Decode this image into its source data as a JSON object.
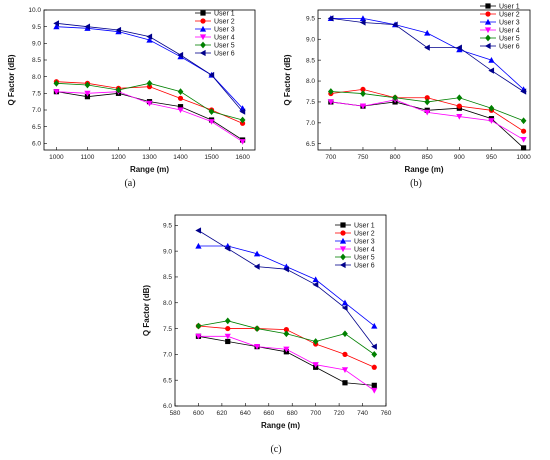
{
  "chart_data": [
    {
      "type": "line",
      "panel_label": "(a)",
      "xlabel": "Range (m)",
      "ylabel": "Q Factor (dB)",
      "x": [
        1000,
        1100,
        1200,
        1300,
        1400,
        1500,
        1600
      ],
      "xticks": [
        1000,
        1100,
        1200,
        1300,
        1400,
        1500,
        1600
      ],
      "yticks": [
        "6.0",
        "6.5",
        "7.0",
        "7.5",
        "8.0",
        "8.5",
        "9.0",
        "9.5",
        "10.0"
      ],
      "xlim": [
        960,
        1640
      ],
      "ylim": [
        5.8,
        10.0
      ],
      "legend_position": "top-right",
      "series": [
        {
          "name": "User 1",
          "color": "#000000",
          "marker": "square",
          "values": [
            7.55,
            7.4,
            7.5,
            7.25,
            7.1,
            6.7,
            6.1
          ]
        },
        {
          "name": "User 2",
          "color": "#ff0000",
          "marker": "circle",
          "values": [
            7.85,
            7.8,
            7.65,
            7.7,
            7.35,
            7.0,
            6.6
          ]
        },
        {
          "name": "User 3",
          "color": "#0000ff",
          "marker": "triangle-up",
          "values": [
            9.5,
            9.45,
            9.35,
            9.1,
            8.6,
            8.05,
            7.05
          ]
        },
        {
          "name": "User 4",
          "color": "#ff00ff",
          "marker": "triangle-down",
          "values": [
            7.55,
            7.5,
            7.55,
            7.2,
            7.0,
            6.65,
            6.05
          ]
        },
        {
          "name": "User 5",
          "color": "#008000",
          "marker": "diamond",
          "values": [
            7.8,
            7.75,
            7.6,
            7.8,
            7.55,
            6.95,
            6.7
          ]
        },
        {
          "name": "User 6",
          "color": "#00008b",
          "marker": "triangle-left",
          "values": [
            9.6,
            9.5,
            9.4,
            9.2,
            8.65,
            8.05,
            6.95
          ]
        }
      ]
    },
    {
      "type": "line",
      "panel_label": "(b)",
      "xlabel": "Range (m)",
      "ylabel": "Q Factor (dB)",
      "x": [
        700,
        750,
        800,
        850,
        900,
        950,
        1000
      ],
      "xticks": [
        700,
        750,
        800,
        850,
        900,
        950,
        1000
      ],
      "yticks": [
        "6.5",
        "7.0",
        "7.5",
        "8.0",
        "8.5",
        "9.0",
        "9.5"
      ],
      "xlim": [
        680,
        1010
      ],
      "ylim": [
        6.35,
        9.7
      ],
      "legend_position": "top-right",
      "series": [
        {
          "name": "User 1",
          "color": "#000000",
          "marker": "square",
          "values": [
            7.5,
            7.4,
            7.5,
            7.3,
            7.35,
            7.1,
            6.4
          ]
        },
        {
          "name": "User 2",
          "color": "#ff0000",
          "marker": "circle",
          "values": [
            7.7,
            7.8,
            7.6,
            7.6,
            7.4,
            7.3,
            6.8
          ]
        },
        {
          "name": "User 3",
          "color": "#0000ff",
          "marker": "triangle-up",
          "values": [
            9.5,
            9.5,
            9.35,
            9.15,
            8.75,
            8.5,
            7.8
          ]
        },
        {
          "name": "User 4",
          "color": "#ff00ff",
          "marker": "triangle-down",
          "values": [
            7.5,
            7.4,
            7.55,
            7.25,
            7.15,
            7.05,
            6.6
          ]
        },
        {
          "name": "User 5",
          "color": "#008000",
          "marker": "diamond",
          "values": [
            7.75,
            7.7,
            7.6,
            7.5,
            7.6,
            7.35,
            7.05
          ]
        },
        {
          "name": "User 6",
          "color": "#00008b",
          "marker": "triangle-left",
          "values": [
            9.5,
            9.4,
            9.35,
            8.8,
            8.8,
            8.25,
            7.75
          ]
        }
      ]
    },
    {
      "type": "line",
      "panel_label": "(c)",
      "xlabel": "Range (m)",
      "ylabel": "Q Factor (dB)",
      "x": [
        600,
        625,
        650,
        675,
        700,
        725,
        750
      ],
      "xticks": [
        580,
        600,
        620,
        640,
        660,
        680,
        700,
        720,
        740,
        760
      ],
      "yticks": [
        "6.0",
        "6.5",
        "7.0",
        "7.5",
        "8.0",
        "8.5",
        "9.0",
        "9.5"
      ],
      "xlim": [
        580,
        760
      ],
      "ylim": [
        6.0,
        9.7
      ],
      "legend_position": "top-right",
      "series": [
        {
          "name": "User 1",
          "color": "#000000",
          "marker": "square",
          "values": [
            7.35,
            7.25,
            7.15,
            7.05,
            6.75,
            6.45,
            6.4
          ]
        },
        {
          "name": "User 2",
          "color": "#ff0000",
          "marker": "circle",
          "values": [
            7.55,
            7.5,
            7.5,
            7.48,
            7.2,
            7.0,
            6.75
          ]
        },
        {
          "name": "User 3",
          "color": "#0000ff",
          "marker": "triangle-up",
          "values": [
            9.1,
            9.1,
            8.95,
            8.7,
            8.45,
            8.0,
            7.55
          ]
        },
        {
          "name": "User 4",
          "color": "#ff00ff",
          "marker": "triangle-down",
          "values": [
            7.35,
            7.35,
            7.15,
            7.1,
            6.8,
            6.7,
            6.3
          ]
        },
        {
          "name": "User 5",
          "color": "#008000",
          "marker": "diamond",
          "values": [
            7.55,
            7.65,
            7.5,
            7.4,
            7.25,
            7.4,
            7.0
          ]
        },
        {
          "name": "User 6",
          "color": "#00008b",
          "marker": "triangle-left",
          "values": [
            9.4,
            9.05,
            8.7,
            8.65,
            8.35,
            7.9,
            7.15
          ]
        }
      ]
    }
  ]
}
